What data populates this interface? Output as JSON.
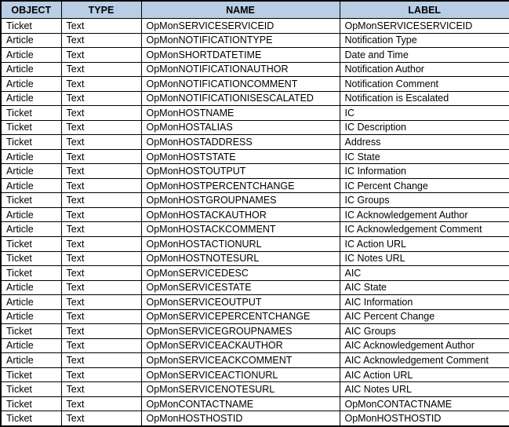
{
  "colors": {
    "header_bg": "#b9cde5",
    "border": "#000000",
    "text": "#000000"
  },
  "table": {
    "headers": [
      "OBJECT",
      "TYPE",
      "NAME",
      "LABEL"
    ],
    "rows": [
      [
        "Ticket",
        "Text",
        "OpMonSERVICESERVICEID",
        "OpMonSERVICESERVICEID"
      ],
      [
        "Article",
        "Text",
        "OpMonNOTIFICATIONTYPE",
        "Notification Type"
      ],
      [
        "Article",
        "Text",
        "OpMonSHORTDATETIME",
        "Date and Time"
      ],
      [
        "Article",
        "Text",
        "OpMonNOTIFICATIONAUTHOR",
        "Notification Author"
      ],
      [
        "Article",
        "Text",
        "OpMonNOTIFICATIONCOMMENT",
        "Notification Comment"
      ],
      [
        "Article",
        "Text",
        "OpMonNOTIFICATIONISESCALATED",
        "Notification is Escalated"
      ],
      [
        "Ticket",
        "Text",
        "OpMonHOSTNAME",
        "IC"
      ],
      [
        "Ticket",
        "Text",
        "OpMonHOSTALIAS",
        "IC Description"
      ],
      [
        "Ticket",
        "Text",
        "OpMonHOSTADDRESS",
        "Address"
      ],
      [
        "Article",
        "Text",
        "OpMonHOSTSTATE",
        "IC State"
      ],
      [
        "Article",
        "Text",
        "OpMonHOSTOUTPUT",
        "IC Information"
      ],
      [
        "Article",
        "Text",
        "OpMonHOSTPERCENTCHANGE",
        "IC Percent Change"
      ],
      [
        "Ticket",
        "Text",
        "OpMonHOSTGROUPNAMES",
        "IC Groups"
      ],
      [
        "Article",
        "Text",
        "OpMonHOSTACKAUTHOR",
        "IC Acknowledgement Author"
      ],
      [
        "Article",
        "Text",
        "OpMonHOSTACKCOMMENT",
        "IC Acknowledgement Comment"
      ],
      [
        "Ticket",
        "Text",
        "OpMonHOSTACTIONURL",
        "IC Action URL"
      ],
      [
        "Ticket",
        "Text",
        "OpMonHOSTNOTESURL",
        "IC Notes URL"
      ],
      [
        "Ticket",
        "Text",
        "OpMonSERVICEDESC",
        "AIC"
      ],
      [
        "Article",
        "Text",
        "OpMonSERVICESTATE",
        "AIC State"
      ],
      [
        "Article",
        "Text",
        "OpMonSERVICEOUTPUT",
        "AIC Information"
      ],
      [
        "Article",
        "Text",
        "OpMonSERVICEPERCENTCHANGE",
        "AIC Percent Change"
      ],
      [
        "Ticket",
        "Text",
        "OpMonSERVICEGROUPNAMES",
        "AIC Groups"
      ],
      [
        "Article",
        "Text",
        "OpMonSERVICEACKAUTHOR",
        "AIC Acknowledgement Author"
      ],
      [
        "Article",
        "Text",
        "OpMonSERVICEACKCOMMENT",
        "AIC Acknowledgement Comment"
      ],
      [
        "Ticket",
        "Text",
        "OpMonSERVICEACTIONURL",
        "AIC Action URL"
      ],
      [
        "Ticket",
        "Text",
        "OpMonSERVICENOTESURL",
        "AIC Notes URL"
      ],
      [
        "Ticket",
        "Text",
        "OpMonCONTACTNAME",
        "OpMonCONTACTNAME"
      ],
      [
        "Ticket",
        "Text",
        "OpMonHOSTHOSTID",
        "OpMonHOSTHOSTID"
      ]
    ]
  }
}
